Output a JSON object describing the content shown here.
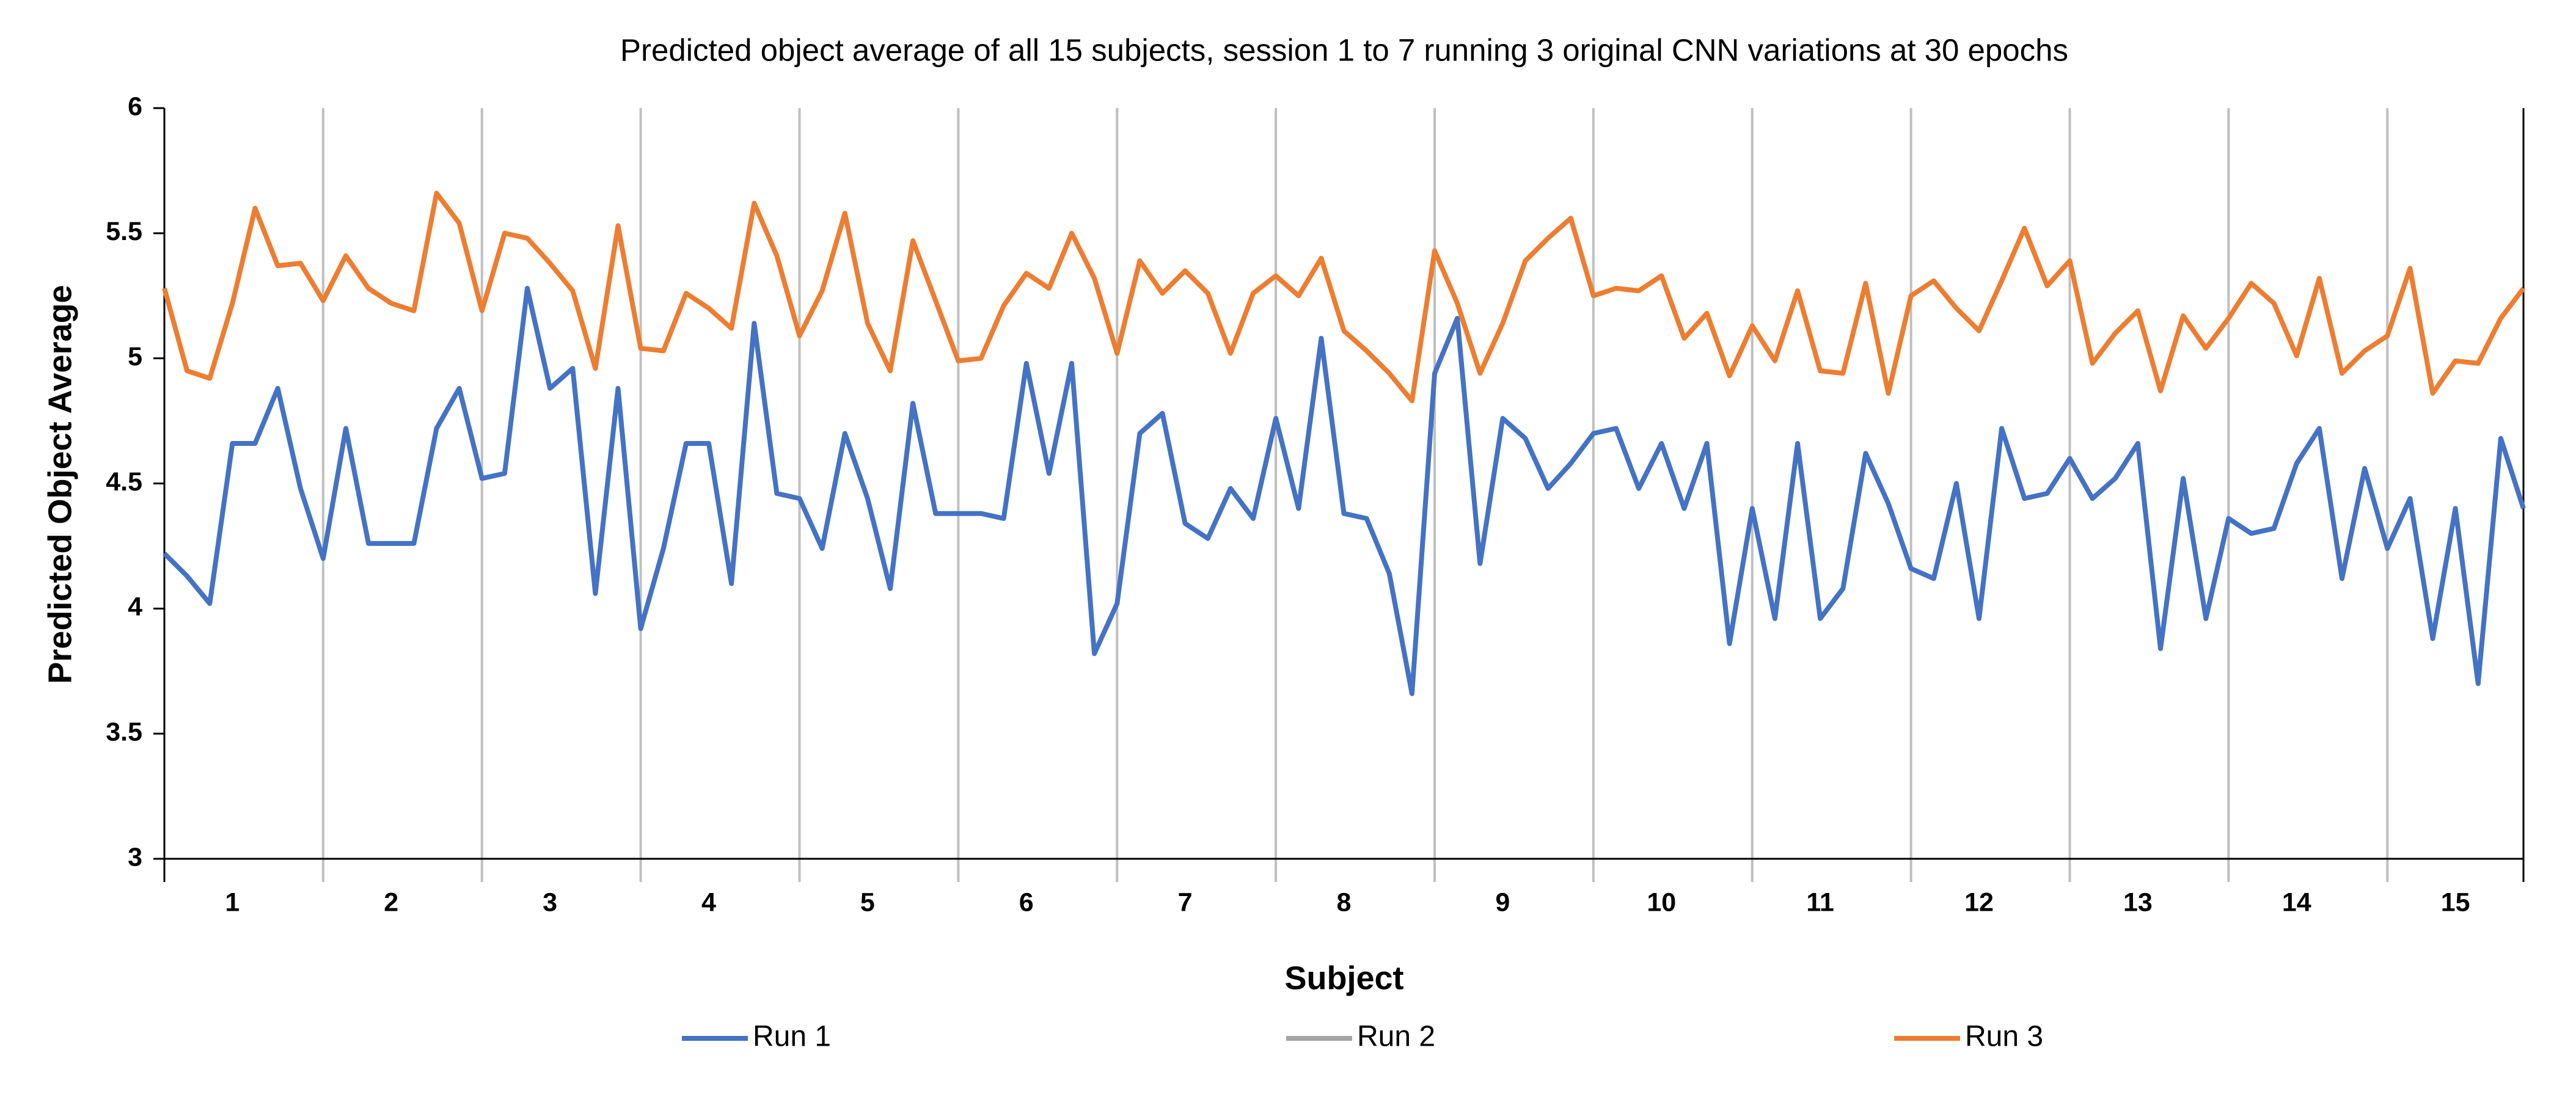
{
  "chart_data": {
    "type": "line",
    "title": "Predicted object average of all 15 subjects, session 1 to 7 running 3 original CNN variations at 30 epochs",
    "xlabel": "Subject",
    "ylabel": "Predicted Object Average",
    "categories": [
      null,
      null,
      null,
      "1",
      null,
      null,
      null,
      null,
      null,
      null,
      "2",
      null,
      null,
      null,
      null,
      null,
      null,
      "3",
      null,
      null,
      null,
      null,
      null,
      null,
      "4",
      null,
      null,
      null,
      null,
      null,
      null,
      "5",
      null,
      null,
      null,
      null,
      null,
      null,
      "6",
      null,
      null,
      null,
      null,
      null,
      null,
      "7",
      null,
      null,
      null,
      null,
      null,
      null,
      "8",
      null,
      null,
      null,
      null,
      null,
      null,
      "9",
      null,
      null,
      null,
      null,
      null,
      null,
      "10",
      null,
      null,
      null,
      null,
      null,
      null,
      "11",
      null,
      null,
      null,
      null,
      null,
      null,
      "12",
      null,
      null,
      null,
      null,
      null,
      null,
      "13",
      null,
      null,
      null,
      null,
      null,
      null,
      "14",
      null,
      null,
      null,
      null,
      null,
      null,
      "15",
      null,
      null,
      null
    ],
    "series": [
      {
        "name": "Run 1",
        "color": "#4472c4",
        "values": [
          4.22,
          4.13,
          4.02,
          4.66,
          4.66,
          4.88,
          4.48,
          4.2,
          4.72,
          4.26,
          4.26,
          4.26,
          4.72,
          4.88,
          4.52,
          4.54,
          5.28,
          4.88,
          4.96,
          4.06,
          4.88,
          3.92,
          4.24,
          4.66,
          4.66,
          4.1,
          5.14,
          4.46,
          4.44,
          4.24,
          4.7,
          4.44,
          4.08,
          4.82,
          4.38,
          4.38,
          4.38,
          4.36,
          4.98,
          4.54,
          4.98,
          3.82,
          4.02,
          4.7,
          4.78,
          4.34,
          4.28,
          4.48,
          4.36,
          4.76,
          4.4,
          5.08,
          4.38,
          4.36,
          4.14,
          3.66,
          4.94,
          5.16,
          4.18,
          4.76,
          4.68,
          4.48,
          4.58,
          4.7,
          4.72,
          4.48,
          4.66,
          4.4,
          4.66,
          3.86,
          4.4,
          3.96,
          4.66,
          3.96,
          4.08,
          4.62,
          4.42,
          4.16,
          4.12,
          4.5,
          3.96,
          4.72,
          4.44,
          4.46,
          4.6,
          4.44,
          4.52,
          4.66,
          3.84,
          4.52,
          3.96,
          4.36,
          4.3,
          4.32,
          4.58,
          4.72,
          4.12,
          4.56,
          4.24,
          4.44,
          3.88,
          4.4,
          3.7,
          4.68,
          4.4
        ]
      },
      {
        "name": "Run 2",
        "color": "#a5a5a5",
        "values": [
          null,
          null,
          null,
          null,
          null,
          null,
          null,
          null,
          null,
          null,
          null,
          null,
          null,
          null,
          null,
          null,
          null,
          null,
          null,
          null,
          null,
          null,
          null,
          null,
          null,
          null,
          null,
          null,
          null,
          null,
          null,
          null,
          null,
          null,
          null,
          null,
          null,
          null,
          null,
          null,
          null,
          null,
          null,
          null,
          null,
          null,
          null,
          null,
          null,
          null,
          null,
          null,
          null,
          null,
          null,
          null,
          null,
          null,
          null,
          null,
          null,
          null,
          null,
          null,
          null,
          null,
          null,
          null,
          null,
          null,
          null,
          null,
          null,
          null,
          null,
          null,
          null,
          null,
          null,
          null,
          null,
          null,
          null,
          null,
          null,
          null,
          null,
          null,
          null,
          null,
          null,
          null,
          null,
          null,
          null,
          null,
          null,
          null,
          null,
          null,
          null,
          null,
          null,
          null,
          null
        ]
      },
      {
        "name": "Run 3",
        "color": "#ed7d31",
        "values": [
          5.28,
          4.95,
          4.92,
          5.22,
          5.6,
          5.37,
          5.38,
          5.23,
          5.41,
          5.28,
          5.22,
          5.19,
          5.66,
          5.54,
          5.19,
          5.5,
          5.48,
          5.38,
          5.27,
          4.96,
          5.53,
          5.04,
          5.03,
          5.26,
          5.2,
          5.12,
          5.62,
          5.41,
          5.09,
          5.27,
          5.58,
          5.14,
          4.95,
          5.47,
          5.23,
          4.99,
          5.0,
          5.21,
          5.34,
          5.28,
          5.5,
          5.32,
          5.02,
          5.39,
          5.26,
          5.35,
          5.26,
          5.02,
          5.26,
          5.33,
          5.25,
          5.4,
          5.11,
          5.03,
          4.94,
          4.83,
          5.43,
          5.22,
          4.94,
          5.14,
          5.39,
          5.48,
          5.56,
          5.25,
          5.28,
          5.27,
          5.33,
          5.08,
          5.18,
          4.93,
          5.13,
          4.99,
          5.27,
          4.95,
          4.94,
          5.3,
          4.86,
          5.25,
          5.31,
          5.2,
          5.11,
          5.31,
          5.52,
          5.29,
          5.39,
          4.98,
          5.1,
          5.19,
          4.87,
          5.17,
          5.04,
          5.16,
          5.3,
          5.22,
          5.01,
          5.32,
          4.94,
          5.03,
          5.09,
          5.36,
          4.86,
          4.99,
          4.98,
          5.16,
          5.28
        ]
      }
    ],
    "ylim": [
      3,
      6
    ],
    "yticks": [
      3,
      3.5,
      4,
      4.5,
      5,
      5.5,
      6
    ],
    "grid": false,
    "legend": "bottom"
  }
}
